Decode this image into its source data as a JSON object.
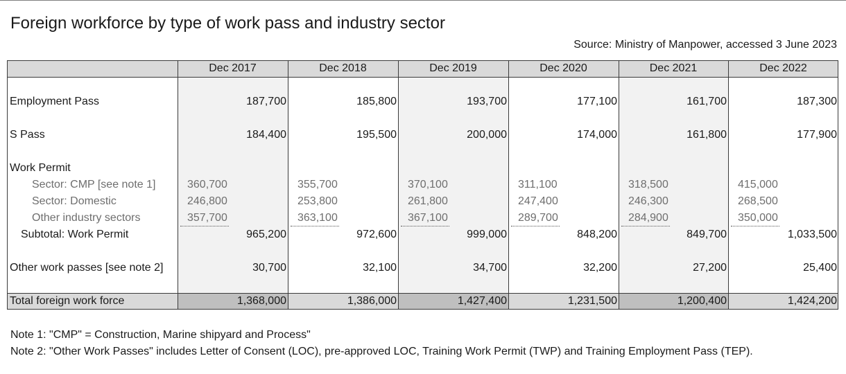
{
  "title": "Foreign workforce by type of work pass and industry sector",
  "source": "Source: Ministry of Manpower, accessed 3 June 2023",
  "columns": [
    "Dec 2017",
    "Dec 2018",
    "Dec 2019",
    "Dec 2020",
    "Dec 2021",
    "Dec 2022"
  ],
  "rows": {
    "employment_pass": {
      "label": "Employment Pass",
      "values": [
        "187,700",
        "185,800",
        "193,700",
        "177,100",
        "161,700",
        "187,300"
      ]
    },
    "s_pass": {
      "label": "S Pass",
      "values": [
        "184,400",
        "195,500",
        "200,000",
        "174,000",
        "161,800",
        "177,900"
      ]
    },
    "work_permit": {
      "label": "Work Permit",
      "sectors": [
        {
          "label": "Sector: CMP [see note 1]",
          "values": [
            "360,700",
            "355,700",
            "370,100",
            "311,100",
            "318,500",
            "415,000"
          ]
        },
        {
          "label": "Sector: Domestic",
          "values": [
            "246,800",
            "253,800",
            "261,800",
            "247,400",
            "246,300",
            "268,500"
          ]
        },
        {
          "label": "Other industry sectors",
          "values": [
            "357,700",
            "363,100",
            "367,100",
            "289,700",
            "284,900",
            "350,000"
          ]
        }
      ],
      "subtotal": {
        "label": "Subtotal: Work Permit",
        "values": [
          "965,200",
          "972,600",
          "999,000",
          "848,200",
          "849,700",
          "1,033,500"
        ]
      }
    },
    "other_work_passes": {
      "label": "Other work passes [see note 2]",
      "values": [
        "30,700",
        "32,100",
        "34,700",
        "32,200",
        "27,200",
        "25,400"
      ]
    },
    "total": {
      "label": "Total foreign work force",
      "values": [
        "1,368,000",
        "1,386,000",
        "1,427,400",
        "1,231,500",
        "1,200,400",
        "1,424,200"
      ]
    }
  },
  "notes": [
    "Note 1: \"CMP\" = Construction, Marine shipyard and Process\"",
    "Note 2: \"Other Work Passes\" includes Letter of Consent (LOC), pre-approved LOC, Training Work Permit (TWP) and Training Employment Pass (TEP)."
  ]
}
